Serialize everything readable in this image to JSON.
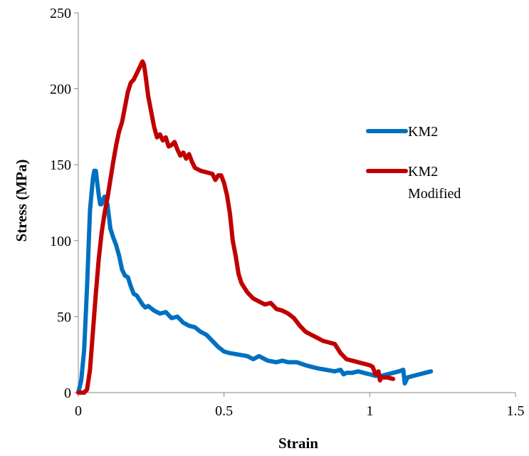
{
  "chart_data": {
    "type": "line",
    "title": "",
    "xlabel": "Strain",
    "ylabel": "Stress (MPa)",
    "xlim": [
      0,
      1.5
    ],
    "ylim": [
      0,
      250
    ],
    "x_ticks": [
      0,
      0.5,
      1,
      1.5
    ],
    "x_tick_labels": [
      "0",
      "0.5",
      "1",
      "1.5"
    ],
    "y_ticks": [
      0,
      50,
      100,
      150,
      200,
      250
    ],
    "y_tick_labels": [
      "0",
      "50",
      "100",
      "150",
      "200",
      "250"
    ],
    "grid": false,
    "legend_position": "right",
    "series": [
      {
        "name": "KM2",
        "legend_lines": [
          "KM2"
        ],
        "color": "#0070C0",
        "points": [
          [
            0.0,
            0
          ],
          [
            0.01,
            8
          ],
          [
            0.02,
            28
          ],
          [
            0.03,
            70
          ],
          [
            0.04,
            120
          ],
          [
            0.05,
            141
          ],
          [
            0.055,
            146
          ],
          [
            0.06,
            146
          ],
          [
            0.065,
            138
          ],
          [
            0.07,
            130
          ],
          [
            0.075,
            124
          ],
          [
            0.08,
            124
          ],
          [
            0.085,
            127
          ],
          [
            0.09,
            129
          ],
          [
            0.095,
            126
          ],
          [
            0.1,
            124
          ],
          [
            0.105,
            116
          ],
          [
            0.11,
            108
          ],
          [
            0.12,
            102
          ],
          [
            0.13,
            97
          ],
          [
            0.14,
            90
          ],
          [
            0.15,
            81
          ],
          [
            0.16,
            77
          ],
          [
            0.17,
            76
          ],
          [
            0.18,
            70
          ],
          [
            0.19,
            65
          ],
          [
            0.2,
            64
          ],
          [
            0.21,
            61
          ],
          [
            0.22,
            58
          ],
          [
            0.23,
            56
          ],
          [
            0.24,
            57
          ],
          [
            0.26,
            54
          ],
          [
            0.28,
            52
          ],
          [
            0.3,
            53
          ],
          [
            0.32,
            49
          ],
          [
            0.34,
            50
          ],
          [
            0.36,
            46
          ],
          [
            0.38,
            44
          ],
          [
            0.4,
            43
          ],
          [
            0.42,
            40
          ],
          [
            0.44,
            38
          ],
          [
            0.46,
            34
          ],
          [
            0.48,
            30
          ],
          [
            0.5,
            27
          ],
          [
            0.52,
            26
          ],
          [
            0.55,
            25
          ],
          [
            0.58,
            24
          ],
          [
            0.6,
            22
          ],
          [
            0.62,
            24
          ],
          [
            0.65,
            21
          ],
          [
            0.68,
            20
          ],
          [
            0.7,
            21
          ],
          [
            0.72,
            20
          ],
          [
            0.75,
            20
          ],
          [
            0.78,
            18
          ],
          [
            0.8,
            17
          ],
          [
            0.82,
            16
          ],
          [
            0.85,
            15
          ],
          [
            0.88,
            14
          ],
          [
            0.9,
            15
          ],
          [
            0.91,
            12
          ],
          [
            0.92,
            13
          ],
          [
            0.94,
            13
          ],
          [
            0.96,
            14
          ],
          [
            0.98,
            13
          ],
          [
            1.0,
            12
          ],
          [
            1.02,
            11
          ],
          [
            1.04,
            11
          ],
          [
            1.06,
            12
          ],
          [
            1.08,
            13
          ],
          [
            1.1,
            14
          ],
          [
            1.115,
            15
          ],
          [
            1.12,
            6
          ],
          [
            1.13,
            10
          ],
          [
            1.15,
            11
          ],
          [
            1.17,
            12
          ],
          [
            1.19,
            13
          ],
          [
            1.21,
            14
          ]
        ]
      },
      {
        "name": "KM2 Modified",
        "legend_lines": [
          "KM2",
          "Modified"
        ],
        "color": "#C00000",
        "points": [
          [
            0.0,
            0
          ],
          [
            0.02,
            0
          ],
          [
            0.03,
            2
          ],
          [
            0.04,
            15
          ],
          [
            0.05,
            40
          ],
          [
            0.06,
            65
          ],
          [
            0.07,
            88
          ],
          [
            0.08,
            105
          ],
          [
            0.09,
            118
          ],
          [
            0.1,
            128
          ],
          [
            0.11,
            140
          ],
          [
            0.12,
            152
          ],
          [
            0.13,
            163
          ],
          [
            0.14,
            172
          ],
          [
            0.15,
            178
          ],
          [
            0.16,
            188
          ],
          [
            0.17,
            198
          ],
          [
            0.18,
            204
          ],
          [
            0.19,
            206
          ],
          [
            0.2,
            210
          ],
          [
            0.21,
            214
          ],
          [
            0.22,
            218
          ],
          [
            0.225,
            216
          ],
          [
            0.23,
            210
          ],
          [
            0.24,
            195
          ],
          [
            0.25,
            185
          ],
          [
            0.26,
            175
          ],
          [
            0.27,
            168
          ],
          [
            0.28,
            170
          ],
          [
            0.29,
            166
          ],
          [
            0.3,
            168
          ],
          [
            0.31,
            162
          ],
          [
            0.32,
            163
          ],
          [
            0.33,
            165
          ],
          [
            0.34,
            160
          ],
          [
            0.35,
            156
          ],
          [
            0.36,
            158
          ],
          [
            0.37,
            154
          ],
          [
            0.38,
            157
          ],
          [
            0.39,
            152
          ],
          [
            0.4,
            148
          ],
          [
            0.42,
            146
          ],
          [
            0.44,
            145
          ],
          [
            0.46,
            144
          ],
          [
            0.47,
            140
          ],
          [
            0.48,
            143
          ],
          [
            0.49,
            143
          ],
          [
            0.5,
            138
          ],
          [
            0.51,
            130
          ],
          [
            0.52,
            118
          ],
          [
            0.53,
            100
          ],
          [
            0.54,
            90
          ],
          [
            0.55,
            78
          ],
          [
            0.56,
            72
          ],
          [
            0.58,
            66
          ],
          [
            0.6,
            62
          ],
          [
            0.62,
            60
          ],
          [
            0.64,
            58
          ],
          [
            0.66,
            59
          ],
          [
            0.68,
            55
          ],
          [
            0.7,
            54
          ],
          [
            0.72,
            52
          ],
          [
            0.74,
            49
          ],
          [
            0.76,
            44
          ],
          [
            0.78,
            40
          ],
          [
            0.8,
            38
          ],
          [
            0.82,
            36
          ],
          [
            0.84,
            34
          ],
          [
            0.86,
            33
          ],
          [
            0.88,
            32
          ],
          [
            0.89,
            29
          ],
          [
            0.9,
            26
          ],
          [
            0.91,
            24
          ],
          [
            0.92,
            22
          ],
          [
            0.94,
            21
          ],
          [
            0.96,
            20
          ],
          [
            0.98,
            19
          ],
          [
            1.0,
            18
          ],
          [
            1.01,
            17
          ],
          [
            1.02,
            12
          ],
          [
            1.03,
            14
          ],
          [
            1.035,
            8
          ],
          [
            1.04,
            10
          ],
          [
            1.06,
            10
          ],
          [
            1.08,
            9
          ]
        ]
      }
    ]
  }
}
